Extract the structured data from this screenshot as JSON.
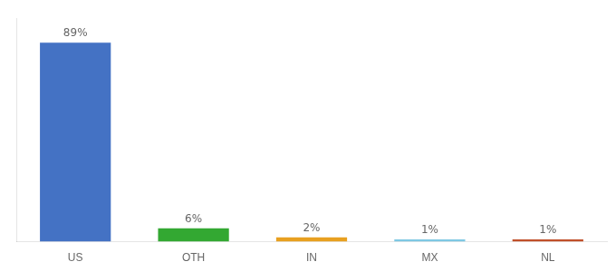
{
  "chart_data": {
    "type": "bar",
    "categories": [
      "US",
      "OTH",
      "IN",
      "MX",
      "NL"
    ],
    "values": [
      89,
      6,
      2,
      1,
      1
    ],
    "value_labels": [
      "89%",
      "6%",
      "2%",
      "1%",
      "1%"
    ],
    "data_labels": true,
    "colors": [
      "#4472c4",
      "#33a832",
      "#e8a020",
      "#7ec8e3",
      "#c0502a"
    ],
    "ylim": [
      0,
      100
    ],
    "yticks": [],
    "tick_labels": "x",
    "grid": false
  }
}
